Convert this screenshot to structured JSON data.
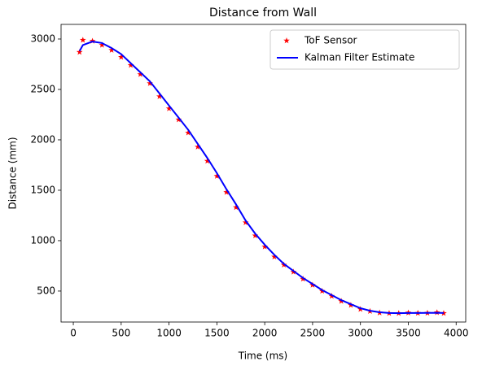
{
  "chart_data": {
    "type": "line",
    "title": "Distance from Wall",
    "xlabel": "Time (ms)",
    "ylabel": "Distance (mm)",
    "x": [
      65,
      100,
      200,
      300,
      400,
      500,
      600,
      700,
      800,
      900,
      1000,
      1100,
      1200,
      1300,
      1400,
      1500,
      1600,
      1700,
      1800,
      1900,
      2000,
      2100,
      2200,
      2300,
      2400,
      2500,
      2600,
      2700,
      2800,
      2900,
      3000,
      3100,
      3200,
      3300,
      3400,
      3500,
      3600,
      3700,
      3800,
      3870
    ],
    "series": [
      {
        "name": "ToF Sensor",
        "color": "#ff0000",
        "marker": "star",
        "values": [
          2870,
          2990,
          2980,
          2940,
          2890,
          2820,
          2740,
          2650,
          2560,
          2430,
          2310,
          2200,
          2070,
          1930,
          1790,
          1640,
          1480,
          1330,
          1180,
          1050,
          940,
          840,
          760,
          690,
          620,
          560,
          500,
          450,
          400,
          360,
          320,
          300,
          285,
          280,
          280,
          285,
          282,
          283,
          288,
          280
        ]
      },
      {
        "name": "Kalman Filter Estimate",
        "color": "#0000ff",
        "marker": "none",
        "values": [
          2880,
          2940,
          2975,
          2960,
          2910,
          2850,
          2760,
          2670,
          2580,
          2460,
          2340,
          2220,
          2100,
          1960,
          1820,
          1670,
          1510,
          1360,
          1200,
          1070,
          960,
          860,
          770,
          700,
          630,
          570,
          510,
          460,
          410,
          370,
          330,
          305,
          290,
          283,
          281,
          283,
          283,
          284,
          285,
          283
        ]
      }
    ],
    "xlim": [
      -128,
      4100
    ],
    "xticks": [
      0,
      500,
      1000,
      1500,
      2000,
      2500,
      3000,
      3500,
      4000
    ],
    "ylim": [
      193,
      3145
    ],
    "yticks": [
      500,
      1000,
      1500,
      2000,
      2500,
      3000
    ],
    "grid": false,
    "legend": "upper right"
  }
}
